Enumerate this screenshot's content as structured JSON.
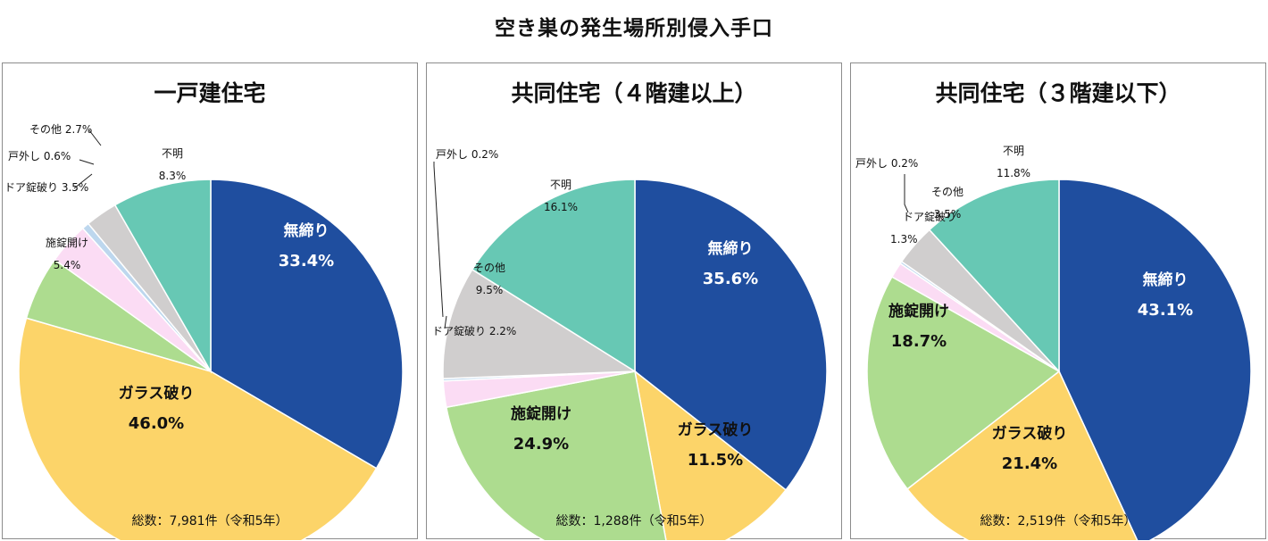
{
  "title": "空き巣の発生場所別侵入手口",
  "colors": {
    "無締り": "#1f4e9f",
    "ガラス破り": "#fcd469",
    "施錠開け": "#addc8f",
    "ドア錠破り": "#fbdcf4",
    "戸外し": "#bdd7ee",
    "その他": "#d0cece",
    "不明": "#67c8b4"
  },
  "chart_data": [
    {
      "type": "pie",
      "title": "一戸建住宅",
      "total_label": "総数：7,981件（令和5年）",
      "slices": [
        {
          "name": "無締り",
          "value": 33.4,
          "value_label": "33.4%"
        },
        {
          "name": "ガラス破り",
          "value": 46.0,
          "value_label": "46.0%"
        },
        {
          "name": "施錠開け",
          "value": 5.4,
          "value_label": "5.4%"
        },
        {
          "name": "ドア錠破り",
          "value": 3.5,
          "value_label": "3.5%"
        },
        {
          "name": "戸外し",
          "value": 0.6,
          "value_label": "0.6%"
        },
        {
          "name": "その他",
          "value": 2.7,
          "value_label": "2.7%"
        },
        {
          "name": "不明",
          "value": 8.3,
          "value_label": "8.3%"
        }
      ]
    },
    {
      "type": "pie",
      "title": "共同住宅（４階建以上）",
      "total_label": "総数：1,288件（令和5年）",
      "slices": [
        {
          "name": "無締り",
          "value": 35.6,
          "value_label": "35.6%"
        },
        {
          "name": "ガラス破り",
          "value": 11.5,
          "value_label": "11.5%"
        },
        {
          "name": "施錠開け",
          "value": 24.9,
          "value_label": "24.9%"
        },
        {
          "name": "ドア錠破り",
          "value": 2.2,
          "value_label": "2.2%"
        },
        {
          "name": "戸外し",
          "value": 0.2,
          "value_label": "0.2%"
        },
        {
          "name": "その他",
          "value": 9.5,
          "value_label": "9.5%"
        },
        {
          "name": "不明",
          "value": 16.1,
          "value_label": "16.1%"
        }
      ]
    },
    {
      "type": "pie",
      "title": "共同住宅（３階建以下）",
      "total_label": "総数：2,519件（令和5年）",
      "slices": [
        {
          "name": "無締り",
          "value": 43.1,
          "value_label": "43.1%"
        },
        {
          "name": "ガラス破り",
          "value": 21.4,
          "value_label": "21.4%"
        },
        {
          "name": "施錠開け",
          "value": 18.7,
          "value_label": "18.7%"
        },
        {
          "name": "ドア錠破り",
          "value": 1.3,
          "value_label": "1.3%"
        },
        {
          "name": "戸外し",
          "value": 0.2,
          "value_label": "0.2%"
        },
        {
          "name": "その他",
          "value": 3.5,
          "value_label": "3.5%"
        },
        {
          "name": "不明",
          "value": 11.8,
          "value_label": "11.8%"
        }
      ]
    }
  ]
}
